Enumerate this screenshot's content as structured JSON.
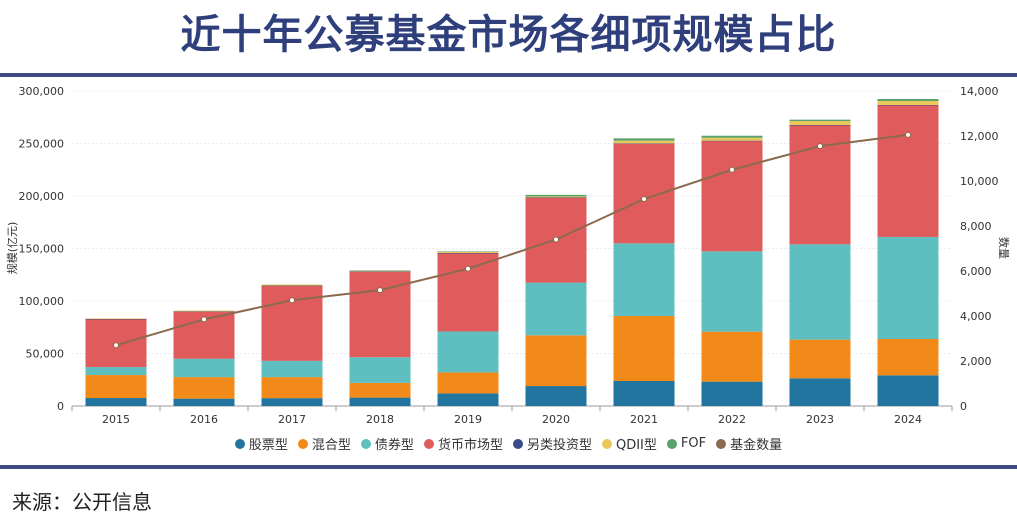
{
  "title": "近十年公募基金市场各细项规模占比",
  "source": "来源：公开信息",
  "chart_data": {
    "type": "bar",
    "stacked": true,
    "title": "近十年公募基金市场各细项规模占比",
    "categories": [
      "2015",
      "2016",
      "2017",
      "2018",
      "2019",
      "2020",
      "2021",
      "2022",
      "2023",
      "2024"
    ],
    "ylabel": "规模(亿元)",
    "ylim": [
      0,
      300000
    ],
    "yticks": [
      "0",
      "50,000",
      "100,000",
      "150,000",
      "200,000",
      "250,000",
      "300,000"
    ],
    "y2label": "数量",
    "y2lim": [
      0,
      14000
    ],
    "y2ticks": [
      "0",
      "2,000",
      "4,000",
      "6,000",
      "8,000",
      "10,000",
      "12,000",
      "14,000"
    ],
    "grid": true,
    "legend": "bottom",
    "series": [
      {
        "name": "股票型",
        "color": "#21759e",
        "values": [
          7600,
          7000,
          7500,
          8000,
          12000,
          19000,
          23800,
          23200,
          26400,
          29200
        ]
      },
      {
        "name": "混合型",
        "color": "#f28a1a",
        "values": [
          21900,
          20500,
          20000,
          14000,
          20000,
          48300,
          61900,
          47600,
          36800,
          34600
        ]
      },
      {
        "name": "债券型",
        "color": "#5fbec0",
        "values": [
          7600,
          17500,
          15500,
          24500,
          39000,
          50200,
          69200,
          76500,
          90800,
          97200
        ]
      },
      {
        "name": "货币市场型",
        "color": "#e05c5c",
        "values": [
          45700,
          45000,
          71500,
          81500,
          74500,
          80900,
          95000,
          105100,
          113300,
          125400
        ]
      },
      {
        "name": "另类投资型",
        "color": "#3b4a8a",
        "values": [
          100,
          150,
          200,
          200,
          200,
          200,
          300,
          300,
          300,
          300
        ]
      },
      {
        "name": "QDII型",
        "color": "#e8c85a",
        "values": [
          500,
          800,
          1000,
          800,
          1000,
          1000,
          2500,
          2800,
          3800,
          3800
        ]
      },
      {
        "name": "FOF",
        "color": "#5aa06a",
        "values": [
          0,
          0,
          0,
          100,
          500,
          1500,
          2200,
          1900,
          1300,
          1900
        ]
      }
    ],
    "line": {
      "name": "基金数量",
      "color": "#8b6a4e",
      "axis": "right",
      "values": [
        2700,
        3850,
        4700,
        5150,
        6100,
        7400,
        9200,
        10500,
        11550,
        12050
      ]
    }
  }
}
